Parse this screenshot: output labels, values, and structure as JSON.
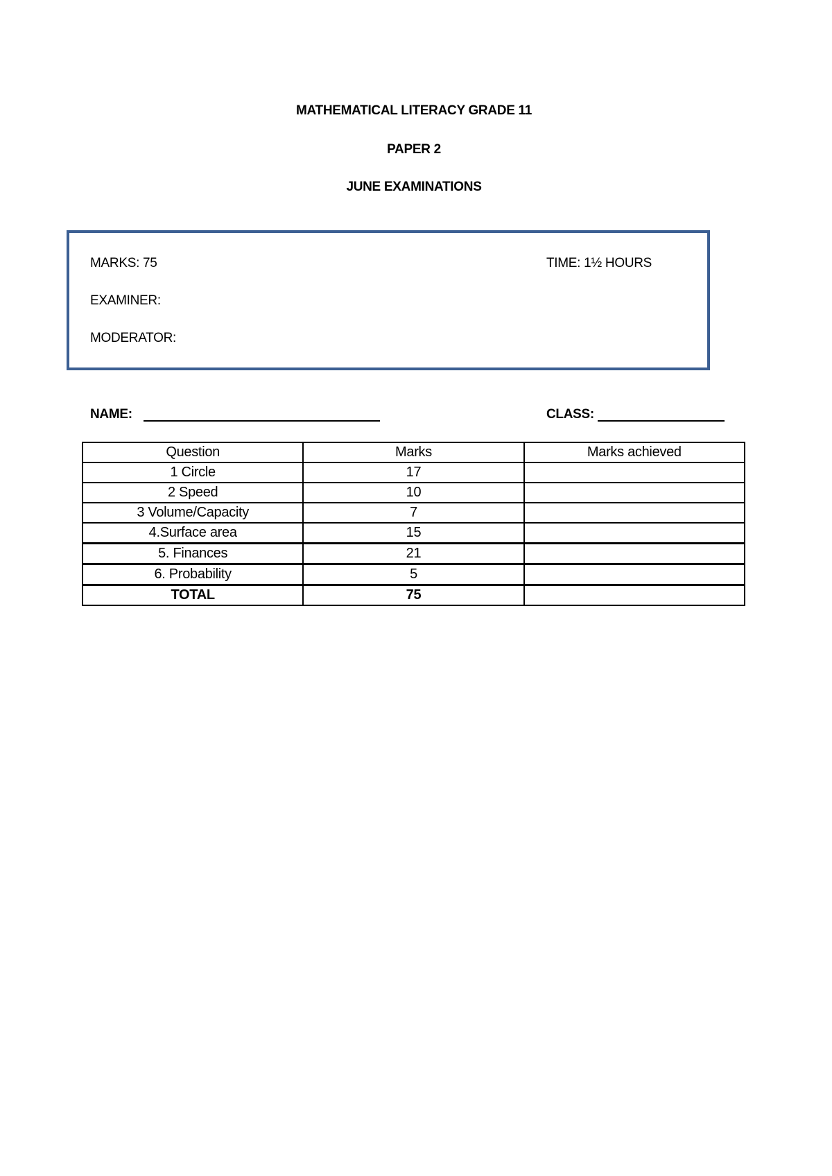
{
  "header": {
    "title": "MATHEMATICAL LITERACY GRADE 11",
    "paper": "PAPER 2",
    "exam": "JUNE EXAMINATIONS"
  },
  "info_box": {
    "marks": "MARKS: 75",
    "time": "TIME: 1½ HOURS",
    "examiner": "EXAMINER:",
    "moderator": "MODERATOR:",
    "border_color": "#3c5f93"
  },
  "fields": {
    "name": "NAME:",
    "class": "CLASS:"
  },
  "table": {
    "headers": [
      "Question",
      "Marks",
      "Marks achieved"
    ],
    "rows": [
      {
        "question": "1 Circle",
        "marks": "17",
        "achieved": ""
      },
      {
        "question": "2 Speed",
        "marks": "10",
        "achieved": ""
      },
      {
        "question": "3 Volume/Capacity",
        "marks": "7",
        "achieved": ""
      },
      {
        "question": "4.Surface area",
        "marks": "15",
        "achieved": ""
      },
      {
        "question": "5. Finances",
        "marks": "21",
        "achieved": ""
      },
      {
        "question": "6. Probability",
        "marks": "5",
        "achieved": ""
      }
    ],
    "total": {
      "question": "TOTAL",
      "marks": "75",
      "achieved": ""
    }
  }
}
